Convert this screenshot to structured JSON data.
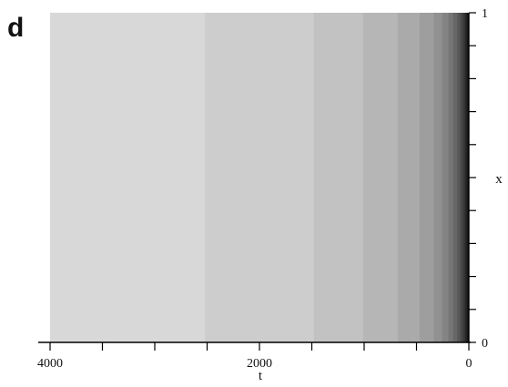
{
  "panel_label": "d",
  "chart_data": {
    "type": "heatmap",
    "title": "",
    "xlabel": "t",
    "ylabel": "x",
    "x_axis_reversed": true,
    "xlim": [
      4000,
      0
    ],
    "ylim": [
      0,
      1
    ],
    "x_tick_labels": [
      {
        "value": 4000,
        "label": "4000"
      },
      {
        "value": 2000,
        "label": "2000"
      },
      {
        "value": 0,
        "label": "0"
      }
    ],
    "x_ticks_minor": [
      3500,
      3000,
      2500,
      1500,
      1000,
      500
    ],
    "y_tick_labels": [
      {
        "value": 0,
        "label": "0"
      },
      {
        "value": 1,
        "label": "1"
      }
    ],
    "y_ticks_minor": [
      0.1,
      0.2,
      0.3,
      0.4,
      0.5,
      0.6,
      0.7,
      0.8,
      0.9
    ],
    "colormap": "grayscale, dark = high, light = low",
    "contour_boundaries_t_at_x_top": [
      2550,
      1550,
      1030,
      700,
      490,
      370,
      280,
      220,
      175,
      140,
      115,
      95,
      80,
      66
    ],
    "contour_boundaries_t_at_x_bottom": [
      2520,
      1480,
      1010,
      680,
      470,
      335,
      255,
      195,
      150,
      110,
      80,
      55,
      35,
      18
    ],
    "band_colors": [
      "#d8d8d8",
      "#cdcdcd",
      "#c2c2c2",
      "#b6b6b6",
      "#aaaaaa",
      "#9e9e9e",
      "#919191",
      "#848484",
      "#767676",
      "#676767",
      "#575757",
      "#474747",
      "#363636",
      "#262626",
      "#151515"
    ],
    "grid": false,
    "legend": "none"
  }
}
